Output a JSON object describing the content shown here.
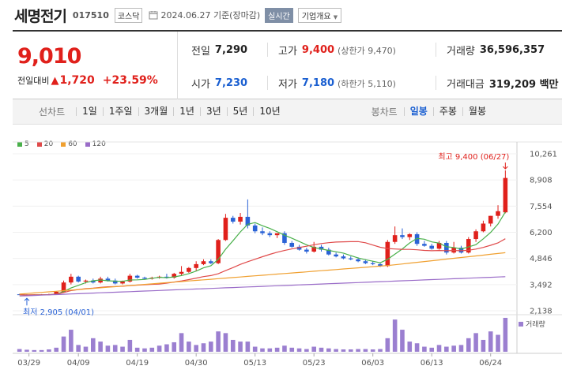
{
  "header": {
    "name": "세명전기",
    "code": "017510",
    "market": "코스닥",
    "date": "2024.06.27 기준(장마감)",
    "realtime_label": "실시간",
    "info_label": "기업개요"
  },
  "summary": {
    "price": "9,010",
    "change_label": "전일대비",
    "change": "1,720",
    "change_pct": "+23.59%",
    "prev_close_label": "전일",
    "prev_close": "7,290",
    "open_label": "시가",
    "open": "7,230",
    "high_label": "고가",
    "high": "9,400",
    "upper_limit": "(상한가 9,470)",
    "low_label": "저가",
    "low": "7,180",
    "lower_limit": "(하한가 5,110)",
    "volume_label": "거래량",
    "volume": "36,596,357",
    "amount_label": "거래대금",
    "amount": "319,209 백만"
  },
  "periods": {
    "line_label": "선차트",
    "line_items": [
      "1일",
      "1주일",
      "3개월",
      "1년",
      "3년",
      "5년",
      "10년"
    ],
    "candle_label": "봉차트",
    "candle_items": [
      "일봉",
      "주봉",
      "월봉"
    ],
    "candle_active": "일봉"
  },
  "legend": [
    {
      "label": "5",
      "color": "#49b04a"
    },
    {
      "label": "20",
      "color": "#e04a4a"
    },
    {
      "label": "60",
      "color": "#f0a030"
    },
    {
      "label": "120",
      "color": "#9a6cc8"
    }
  ],
  "chart_data": {
    "type": "candlestick",
    "y_ticks": [
      "10,261",
      "8,908",
      "7,554",
      "6,200",
      "4,846",
      "3,492",
      "2,138"
    ],
    "ylim": [
      2138,
      10261
    ],
    "x_ticks": [
      "03/29",
      "04/09",
      "04/19",
      "04/30",
      "05/13",
      "05/23",
      "06/03",
      "06/13",
      "06/24"
    ],
    "max_label": "최고 9,400 (06/27)",
    "min_label": "최저 2,905 (04/01)",
    "volume_label": "거래량",
    "up_color": "#e0201b",
    "down_color": "#2b63d6",
    "candles": [
      [
        2990,
        3010,
        2950,
        2970
      ],
      [
        2960,
        2990,
        2905,
        2940
      ],
      [
        2940,
        2980,
        2920,
        2960
      ],
      [
        2960,
        3000,
        2940,
        2980
      ],
      [
        2980,
        3020,
        2950,
        2995
      ],
      [
        2995,
        3150,
        2980,
        3120
      ],
      [
        3120,
        3700,
        3100,
        3600
      ],
      [
        3600,
        4050,
        3500,
        3900
      ],
      [
        3900,
        3950,
        3600,
        3650
      ],
      [
        3650,
        3750,
        3550,
        3700
      ],
      [
        3700,
        3800,
        3550,
        3600
      ],
      [
        3600,
        3900,
        3550,
        3800
      ],
      [
        3800,
        3900,
        3650,
        3700
      ],
      [
        3700,
        3800,
        3500,
        3550
      ],
      [
        3550,
        3700,
        3500,
        3650
      ],
      [
        3650,
        4050,
        3600,
        3950
      ],
      [
        3950,
        4000,
        3800,
        3850
      ],
      [
        3850,
        3900,
        3750,
        3800
      ],
      [
        3800,
        3900,
        3750,
        3850
      ],
      [
        3850,
        3950,
        3800,
        3900
      ],
      [
        3900,
        4050,
        3800,
        3850
      ],
      [
        3850,
        4100,
        3800,
        4050
      ],
      [
        4050,
        4450,
        3950,
        4150
      ],
      [
        4150,
        4400,
        4100,
        4350
      ],
      [
        4350,
        4700,
        4200,
        4550
      ],
      [
        4550,
        4800,
        4500,
        4700
      ],
      [
        4700,
        4800,
        4550,
        4600
      ],
      [
        4600,
        5850,
        4550,
        5800
      ],
      [
        5800,
        7150,
        5750,
        6950
      ],
      [
        6950,
        7050,
        6650,
        6750
      ],
      [
        6750,
        7200,
        6600,
        7000
      ],
      [
        7000,
        7900,
        6400,
        6550
      ],
      [
        6550,
        6650,
        6150,
        6250
      ],
      [
        6250,
        6450,
        6050,
        6150
      ],
      [
        6150,
        6250,
        5950,
        6050
      ],
      [
        6050,
        6150,
        5900,
        6150
      ],
      [
        6150,
        6250,
        5550,
        5650
      ],
      [
        5650,
        5750,
        5400,
        5450
      ],
      [
        5450,
        5550,
        5250,
        5300
      ],
      [
        5300,
        5400,
        5100,
        5200
      ],
      [
        5200,
        5700,
        5150,
        5450
      ],
      [
        5450,
        5550,
        5200,
        5300
      ],
      [
        5300,
        5400,
        5000,
        5050
      ],
      [
        5050,
        5150,
        4900,
        4950
      ],
      [
        4950,
        5050,
        4800,
        4850
      ],
      [
        4850,
        4950,
        4750,
        4800
      ],
      [
        4800,
        4900,
        4650,
        4700
      ],
      [
        4700,
        4800,
        4550,
        4600
      ],
      [
        4600,
        4700,
        4500,
        4550
      ],
      [
        4550,
        4600,
        4400,
        4450
      ],
      [
        4450,
        5800,
        4400,
        5700
      ],
      [
        5700,
        6500,
        5600,
        6050
      ],
      [
        6050,
        6400,
        5850,
        5950
      ],
      [
        5950,
        6150,
        5800,
        6100
      ],
      [
        6100,
        6200,
        5500,
        5600
      ],
      [
        5600,
        5750,
        5450,
        5500
      ],
      [
        5500,
        5600,
        5300,
        5350
      ],
      [
        5350,
        5750,
        5300,
        5650
      ],
      [
        5650,
        5750,
        5050,
        5150
      ],
      [
        5150,
        5700,
        5100,
        5400
      ],
      [
        5400,
        5500,
        5100,
        5150
      ],
      [
        5150,
        5950,
        5100,
        5850
      ],
      [
        5850,
        6350,
        5700,
        6250
      ],
      [
        6250,
        6800,
        6200,
        6650
      ],
      [
        6650,
        7050,
        6500,
        7050
      ],
      [
        7050,
        7600,
        6900,
        7290
      ],
      [
        7230,
        9400,
        7180,
        9010
      ]
    ],
    "volumes": [
      0.08,
      0.06,
      0.05,
      0.05,
      0.07,
      0.12,
      0.45,
      0.65,
      0.2,
      0.15,
      0.4,
      0.3,
      0.18,
      0.2,
      0.15,
      0.35,
      0.12,
      0.1,
      0.12,
      0.18,
      0.22,
      0.28,
      0.55,
      0.3,
      0.2,
      0.25,
      0.3,
      0.6,
      0.55,
      0.35,
      0.3,
      0.3,
      0.15,
      0.1,
      0.1,
      0.12,
      0.18,
      0.12,
      0.1,
      0.08,
      0.15,
      0.12,
      0.1,
      0.08,
      0.07,
      0.07,
      0.08,
      0.08,
      0.07,
      0.08,
      0.4,
      0.95,
      0.65,
      0.3,
      0.25,
      0.15,
      0.12,
      0.2,
      0.15,
      0.18,
      0.2,
      0.4,
      0.55,
      0.35,
      0.6,
      0.5,
      1.0
    ]
  }
}
